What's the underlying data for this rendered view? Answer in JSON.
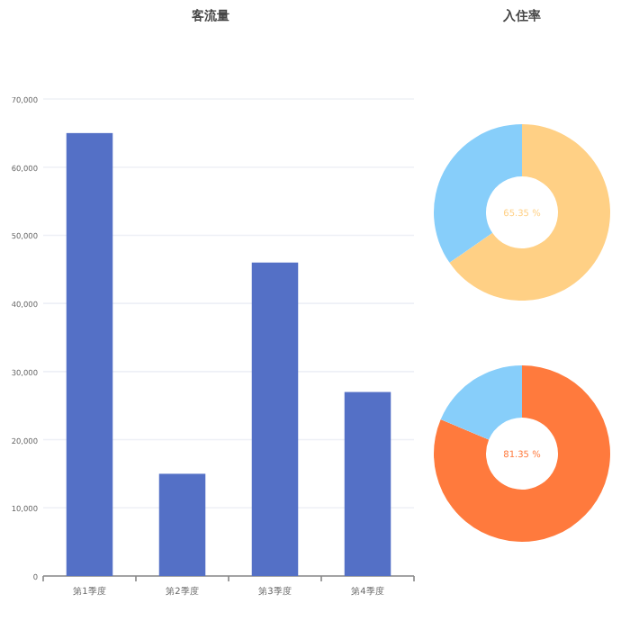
{
  "chart_data": [
    {
      "type": "bar",
      "title": "客流量",
      "categories": [
        "第1季度",
        "第2季度",
        "第3季度",
        "第4季度"
      ],
      "values": [
        65000,
        15000,
        46000,
        27000
      ],
      "color": "#5470c6",
      "ylim": [
        0,
        70000
      ],
      "yticks": [
        0,
        {
          "value": 10000,
          "label": "10,000"
        },
        {
          "value": 20000,
          "label": "20,000"
        },
        {
          "value": 30000,
          "label": "30,000"
        },
        {
          "value": 40000,
          "label": "40,000"
        },
        {
          "value": 50000,
          "label": "50,000"
        },
        {
          "value": 60000,
          "label": "60,000"
        },
        {
          "value": 70000,
          "label": "70,000"
        }
      ],
      "grid": "y"
    },
    {
      "type": "donut",
      "title": "入住率",
      "categories": [
        null,
        null
      ],
      "values": [
        65.35,
        34.65
      ],
      "colors": [
        "#ffd085",
        "#87cefa"
      ],
      "annotations": [
        "65.35 %"
      ]
    },
    {
      "type": "donut",
      "categories": [
        null,
        null
      ],
      "values": [
        81.35,
        18.65
      ],
      "colors": [
        "#ff7a3d",
        "#87cefa"
      ],
      "annotations": [
        "81.35 %"
      ]
    }
  ]
}
